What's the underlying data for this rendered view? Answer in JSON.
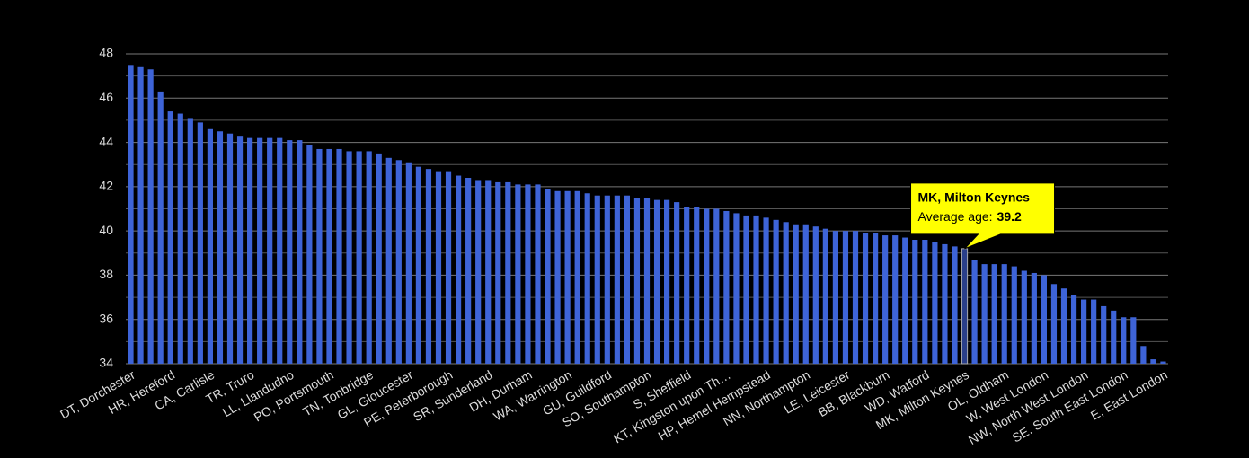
{
  "chart_data": {
    "type": "bar",
    "categories": [
      "DT, Dorchester",
      null,
      null,
      null,
      "HR, Hereford",
      null,
      null,
      null,
      "CA, Carlisle",
      null,
      null,
      null,
      "TR, Truro",
      null,
      null,
      null,
      "LL, Llandudno",
      null,
      null,
      null,
      "PO, Portsmouth",
      null,
      null,
      null,
      "TN, Tonbridge",
      null,
      null,
      null,
      "GL, Gloucester",
      null,
      null,
      null,
      "PE, Peterborough",
      null,
      null,
      null,
      "SR, Sunderland",
      null,
      null,
      null,
      "DH, Durham",
      null,
      null,
      null,
      "WA, Warrington",
      null,
      null,
      null,
      "GU, Guildford",
      null,
      null,
      null,
      "SO, Southampton",
      null,
      null,
      null,
      "S, Sheffield",
      null,
      null,
      null,
      "KT, Kingston upon Th…",
      null,
      null,
      null,
      "HP, Hemel Hempstead",
      null,
      null,
      null,
      "NN, Northampton",
      null,
      null,
      null,
      "LE, Leicester",
      null,
      null,
      null,
      "BB, Blackburn",
      null,
      null,
      null,
      "WD, Watford",
      null,
      null,
      null,
      "MK, Milton Keynes",
      null,
      null,
      null,
      "OL, Oldham",
      null,
      null,
      null,
      "W, West London",
      null,
      null,
      null,
      "NW, North West London",
      null,
      null,
      null,
      "SE, South East London",
      null,
      null,
      null,
      "E, East London"
    ],
    "values": [
      47.5,
      47.4,
      47.3,
      46.3,
      45.4,
      45.3,
      45.1,
      44.9,
      44.6,
      44.5,
      44.4,
      44.3,
      44.2,
      44.2,
      44.2,
      44.2,
      44.1,
      44.1,
      43.9,
      43.7,
      43.7,
      43.7,
      43.6,
      43.6,
      43.6,
      43.5,
      43.3,
      43.2,
      43.1,
      42.9,
      42.8,
      42.7,
      42.7,
      42.5,
      42.4,
      42.3,
      42.3,
      42.2,
      42.2,
      42.1,
      42.1,
      42.1,
      41.9,
      41.8,
      41.8,
      41.8,
      41.7,
      41.6,
      41.6,
      41.6,
      41.6,
      41.5,
      41.5,
      41.4,
      41.4,
      41.3,
      41.1,
      41.1,
      41.0,
      41.0,
      40.9,
      40.8,
      40.7,
      40.7,
      40.6,
      40.5,
      40.4,
      40.3,
      40.3,
      40.2,
      40.1,
      40.0,
      40.0,
      40.0,
      39.9,
      39.9,
      39.8,
      39.8,
      39.7,
      39.6,
      39.6,
      39.5,
      39.4,
      39.3,
      39.2,
      38.7,
      38.5,
      38.5,
      38.5,
      38.4,
      38.2,
      38.1,
      38.0,
      37.6,
      37.4,
      37.1,
      36.9,
      36.9,
      36.6,
      36.4,
      36.1,
      36.1,
      34.8,
      34.2,
      34.1
    ],
    "color": "#3e64d8",
    "highlight_color": "#2a3f8a",
    "ylim": [
      34,
      48
    ],
    "yticks": [
      34,
      36,
      38,
      40,
      42,
      44,
      46,
      48
    ],
    "minor_yticks": [
      35,
      37,
      39,
      41,
      43,
      45,
      47
    ],
    "grid": true,
    "tooltip": {
      "title": "MK, Milton Keynes",
      "label": "Average age:",
      "value": 39.2
    }
  }
}
